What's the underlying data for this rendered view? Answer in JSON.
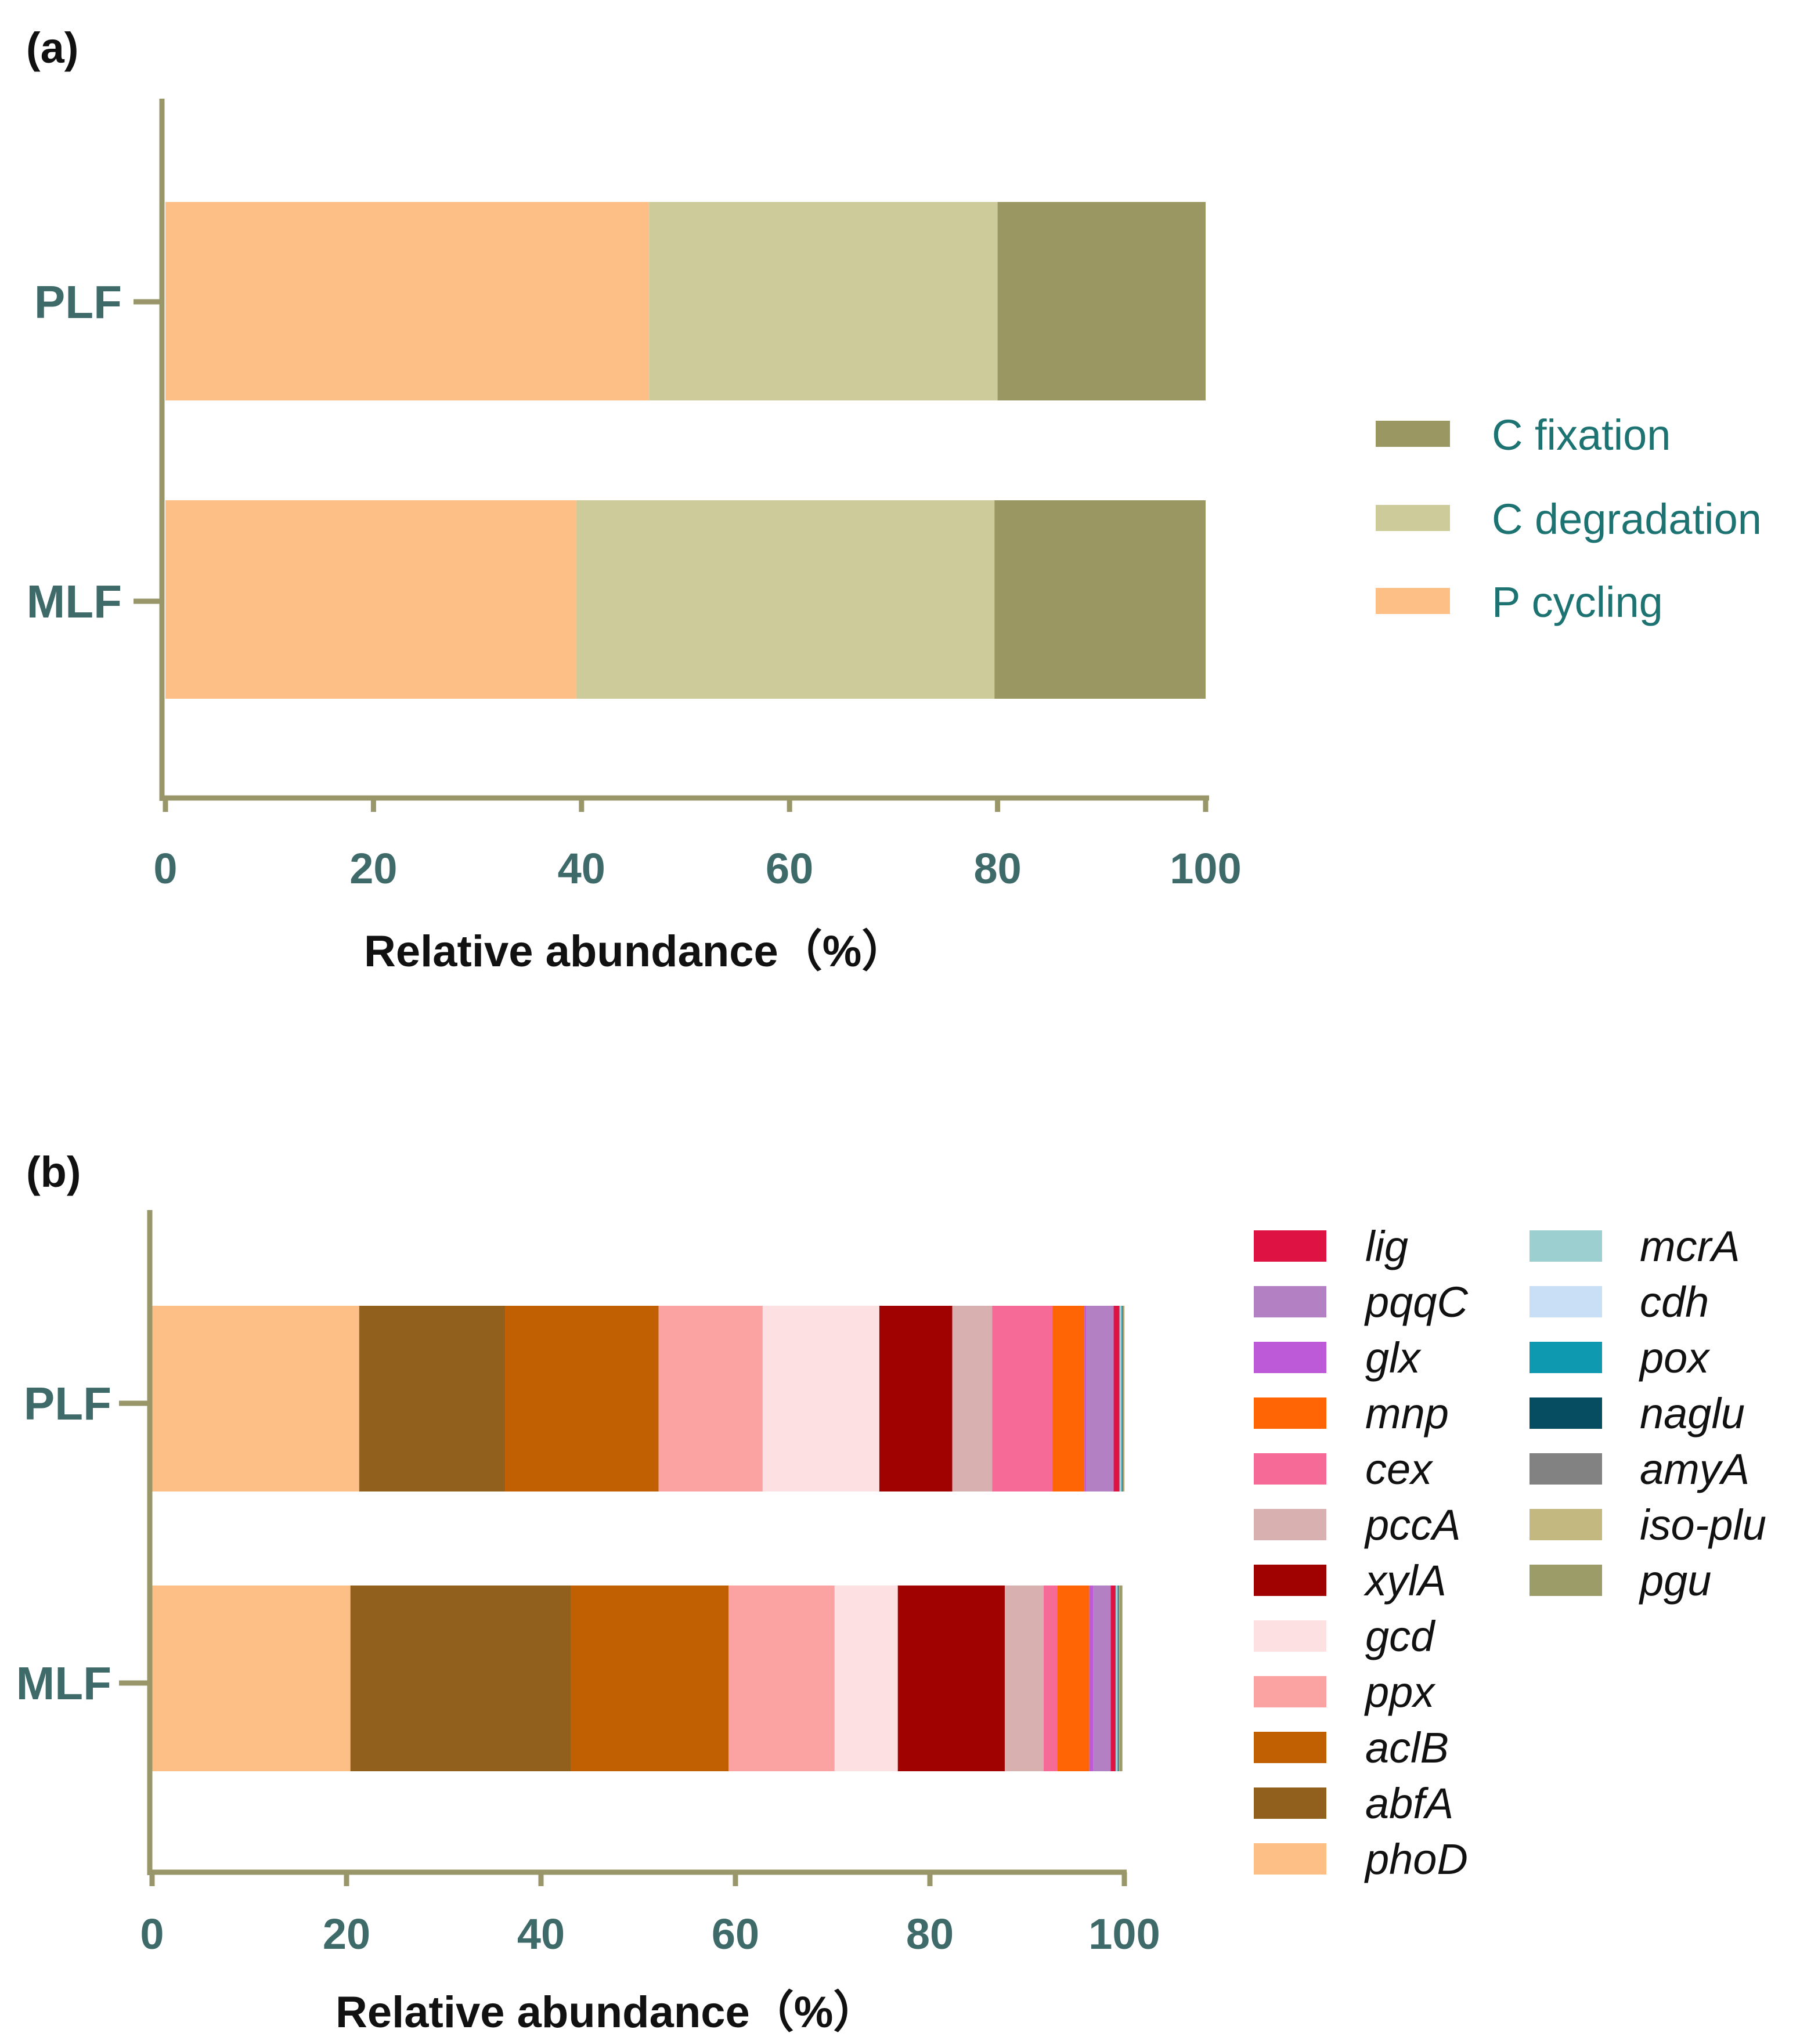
{
  "chart_data": [
    {
      "panel": "(a)",
      "type": "bar",
      "orientation": "horizontal",
      "stacked": true,
      "categories": [
        "PLF",
        "MLF"
      ],
      "series": [
        {
          "name": "P cycling",
          "color": "#fdbf85",
          "values": [
            46.5,
            39.5
          ]
        },
        {
          "name": "C degradation",
          "color": "#cdcb9a",
          "values": [
            33.5,
            40.2
          ]
        },
        {
          "name": "C fixation",
          "color": "#9a9763",
          "values": [
            20.0,
            20.3
          ]
        }
      ],
      "legend_order": [
        "C fixation",
        "C degradation",
        "P cycling"
      ],
      "xlabel": "Relative abundance（%）",
      "xlim": [
        0,
        100
      ],
      "xticks": [
        "0",
        "20",
        "40",
        "60",
        "80",
        "100"
      ],
      "grid": false,
      "legend_position": "right"
    },
    {
      "panel": "(b)",
      "type": "bar",
      "orientation": "horizontal",
      "stacked": true,
      "categories": [
        "PLF",
        "MLF"
      ],
      "series": [
        {
          "name": "phoD",
          "color": "#fdbf85",
          "values": [
            21.3,
            20.4
          ]
        },
        {
          "name": "abfA",
          "color": "#92601d",
          "values": [
            15.0,
            22.7
          ]
        },
        {
          "name": "aclB",
          "color": "#c06003",
          "values": [
            15.8,
            16.2
          ]
        },
        {
          "name": "ppx",
          "color": "#fba2a2",
          "values": [
            10.7,
            10.9
          ]
        },
        {
          "name": "gcd",
          "color": "#fde0e2",
          "values": [
            12.0,
            6.5
          ]
        },
        {
          "name": "xylA",
          "color": "#a00101",
          "values": [
            7.5,
            11.0
          ]
        },
        {
          "name": "pccA",
          "color": "#d8b0b0",
          "values": [
            4.1,
            4.0
          ]
        },
        {
          "name": "cex",
          "color": "#f56a96",
          "values": [
            6.2,
            1.4
          ]
        },
        {
          "name": "mnp",
          "color": "#ff6505",
          "values": [
            3.3,
            3.3
          ]
        },
        {
          "name": "glx",
          "color": "#bd5ad7",
          "values": [
            0.2,
            0.4
          ]
        },
        {
          "name": "pqqC",
          "color": "#b381c3",
          "values": [
            2.8,
            1.8
          ]
        },
        {
          "name": "lig",
          "color": "#df1343",
          "values": [
            0.6,
            0.5
          ]
        },
        {
          "name": "mcrA",
          "color": "#9ccfcf",
          "values": [
            0.15,
            0.15
          ]
        },
        {
          "name": "cdh",
          "color": "#c9dff5",
          "values": [
            0.05,
            0.05
          ]
        },
        {
          "name": "pox",
          "color": "#0f99b0",
          "values": [
            0.05,
            0.05
          ]
        },
        {
          "name": "naglu",
          "color": "#064d62",
          "values": [
            0.05,
            0.05
          ]
        },
        {
          "name": "amyA",
          "color": "#828282",
          "values": [
            0.05,
            0.05
          ]
        },
        {
          "name": "iso-plu",
          "color": "#c2b880",
          "values": [
            0.05,
            0.05
          ]
        },
        {
          "name": "pgu",
          "color": "#9c9c68",
          "values": [
            0.1,
            0.3
          ]
        }
      ],
      "legend_col1": [
        "lig",
        "pqqC",
        "glx",
        "mnp",
        "cex",
        "pccA",
        "xylA",
        "gcd",
        "ppx",
        "aclB",
        "abfA",
        "phoD"
      ],
      "legend_col2": [
        "mcrA",
        "cdh",
        "pox",
        "naglu",
        "amyA",
        "iso-plu",
        "pgu"
      ],
      "xlabel": "Relative abundance（%）",
      "xlim": [
        0,
        100
      ],
      "xticks": [
        "0",
        "20",
        "40",
        "60",
        "80",
        "100"
      ],
      "grid": false,
      "legend_position": "right"
    }
  ]
}
